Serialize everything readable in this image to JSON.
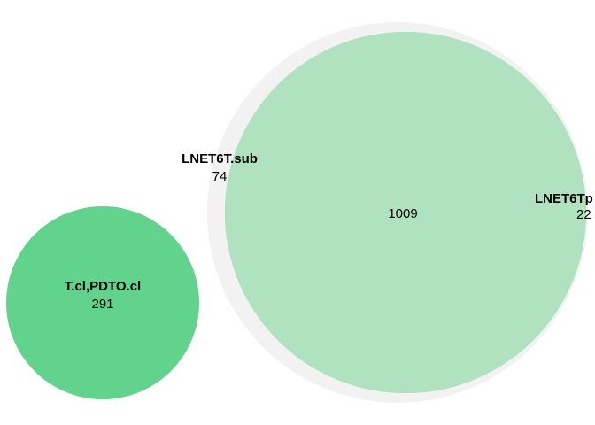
{
  "diagram": {
    "type": "euler",
    "sets": [
      {
        "id": "sub",
        "name": "LNET6T.sub",
        "count": "74",
        "color": "#f2f2f2"
      },
      {
        "id": "p",
        "name": "LNET6Tp",
        "count": "22",
        "color": "#62d38d"
      },
      {
        "id": "cl",
        "name": "T.cl,PDTO.cl",
        "count": "291",
        "color": "#62d38d"
      }
    ],
    "intersection": {
      "sets": [
        "LNET6T.sub",
        "LNET6Tp"
      ],
      "count": "1009",
      "color": "#b0e2bf"
    }
  }
}
